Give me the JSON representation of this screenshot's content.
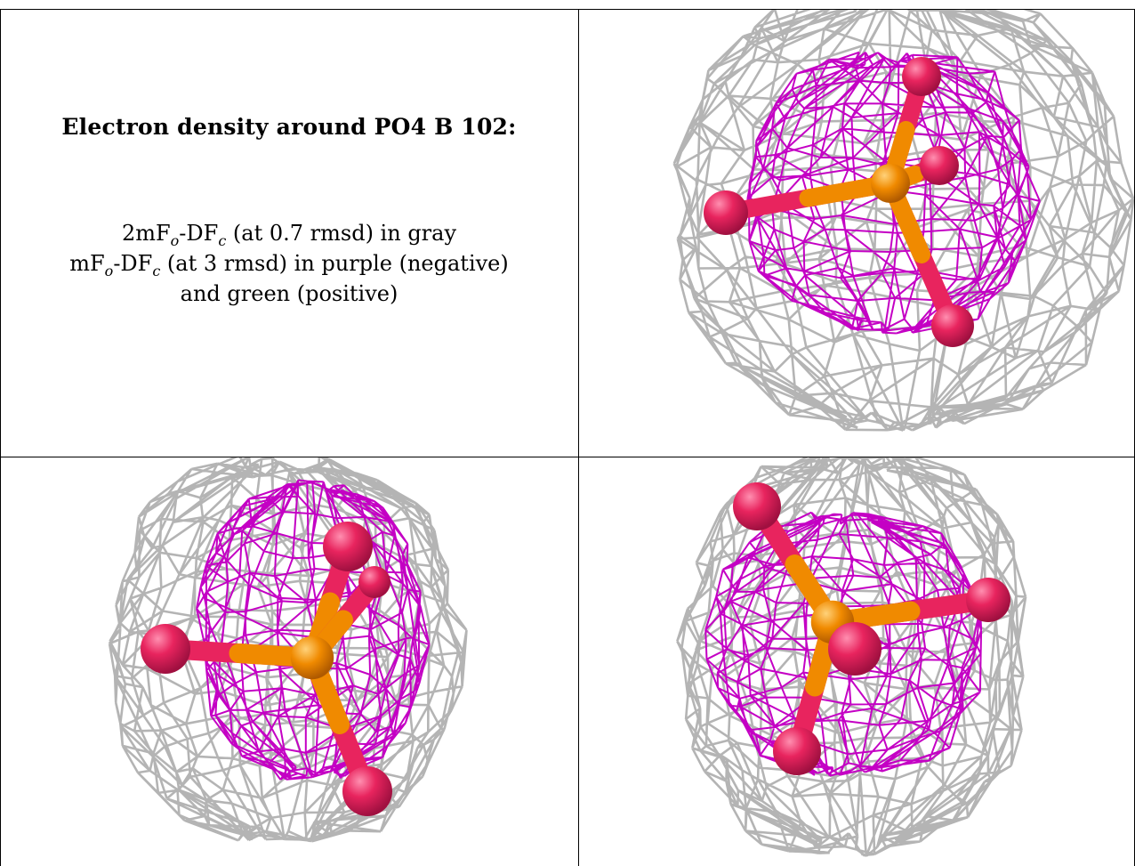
{
  "legend": {
    "title": "Electron density around PO4 B 102:",
    "line1": {
      "prefix": "2mF",
      "sub1": "o",
      "mid": "-DF",
      "sub2": "c",
      "suffix": " (at 0.7 rmsd) in gray"
    },
    "line2": {
      "prefix": "mF",
      "sub1": "o",
      "mid": "-DF",
      "sub2": "c",
      "suffix": " (at 3 rmsd) in purple (negative)"
    },
    "line3": "and green (positive)"
  },
  "colors": {
    "mesh_2fofc": "#b4b4b4",
    "mesh_fofc_negative": "#c400c4",
    "oxygen": "#e8245e",
    "phosphorus": "#f08a00"
  },
  "panels": [
    {
      "name": "view-top-right"
    },
    {
      "name": "view-bottom-left"
    },
    {
      "name": "view-bottom-right"
    }
  ]
}
